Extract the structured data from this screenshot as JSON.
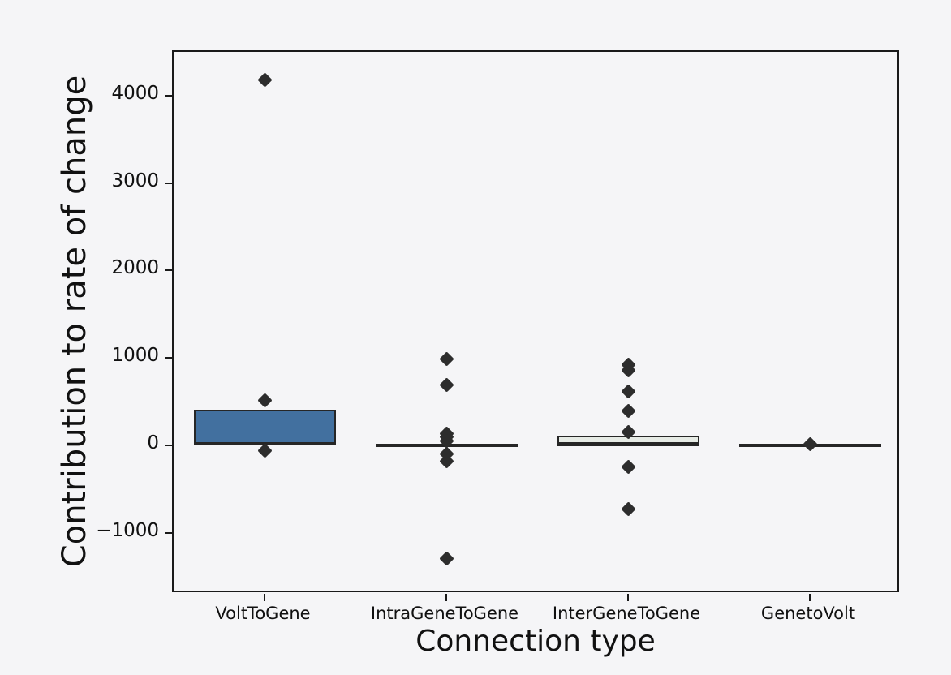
{
  "chart_data": {
    "type": "boxplot",
    "title": "",
    "xlabel": "Connection type",
    "ylabel": "Contribution to rate of change",
    "ylim": [
      -1700,
      4500
    ],
    "yticks": [
      -1000,
      0,
      1000,
      2000,
      3000,
      4000
    ],
    "grid": false,
    "legend": "none",
    "categories": [
      "VoltToGene",
      "IntraGeneToGene",
      "InterGeneToGene",
      "GenetoVolt"
    ],
    "boxes": [
      {
        "category": "VoltToGene",
        "q1": 0,
        "median": 10,
        "q3": 390,
        "whisker_low": 0,
        "whisker_high": 390,
        "fill": "#42709f",
        "outliers": [
          4180,
          510,
          -60
        ]
      },
      {
        "category": "IntraGeneToGene",
        "q1": 0,
        "median": 0,
        "q3": 0,
        "whisker_low": 0,
        "whisker_high": 0,
        "fill": "#e8e8e8",
        "outliers": [
          990,
          690,
          130,
          100,
          50,
          -100,
          -180,
          -1300
        ]
      },
      {
        "category": "InterGeneToGene",
        "q1": -5,
        "median": 0,
        "q3": 90,
        "whisker_low": -5,
        "whisker_high": 90,
        "fill": "#e6ebe5",
        "outliers": [
          920,
          860,
          620,
          390,
          150,
          -250,
          -730
        ]
      },
      {
        "category": "GenetoVolt",
        "q1": 0,
        "median": 0,
        "q3": 0,
        "whisker_low": 0,
        "whisker_high": 0,
        "fill": "#e8e8e8",
        "outliers": [
          15
        ]
      }
    ]
  }
}
